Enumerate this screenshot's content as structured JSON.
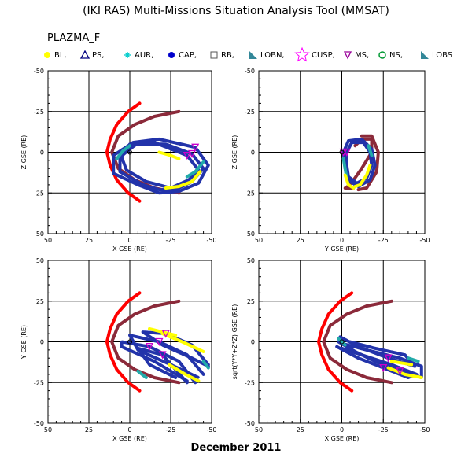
{
  "title": "(IKI RAS) Multi-Missions Situation Analysis Tool (MMSAT)",
  "dataset": "PLAZMA_F",
  "date": "December 2011",
  "legend": [
    {
      "label": "BL,",
      "symbol": "filled-circle",
      "color": "#ffff00"
    },
    {
      "label": "PS,",
      "symbol": "open-triangle",
      "color": "#000080"
    },
    {
      "label": "AUR,",
      "symbol": "asterisk",
      "color": "#00cccc"
    },
    {
      "label": "CAP,",
      "symbol": "filled-circle",
      "color": "#0000cc"
    },
    {
      "label": "RB,",
      "symbol": "open-square",
      "color": "#555555"
    },
    {
      "label": "LOBN,",
      "symbol": "filled-triangle",
      "color": "#338899"
    },
    {
      "label": "CUSP,",
      "symbol": "star",
      "color": "#ff00ff"
    },
    {
      "label": "MS,",
      "symbol": "down-triangle",
      "color": "#990099"
    },
    {
      "label": "NS,",
      "symbol": "open-circle",
      "color": "#009933"
    },
    {
      "label": "LOBS",
      "symbol": "filled-triangle",
      "color": "#338899"
    }
  ],
  "colors": {
    "magnetopause": "#8b2a3a",
    "bow_shock": "#ff0000",
    "orbit": "#2233aa",
    "yellow_segment": "#ffff00",
    "cyan_segment": "#22aaaa"
  },
  "chart_data": [
    {
      "type": "scatter",
      "id": "xz",
      "xlabel": "X GSE (RE)",
      "ylabel": "Z GSE (RE)",
      "xlim": [
        50,
        -50
      ],
      "ylim": [
        -50,
        50
      ],
      "xticks": [
        "50",
        "25",
        "0",
        "-25",
        "-50"
      ],
      "yticks": [
        "50",
        "25",
        "0",
        "-25",
        "-50"
      ],
      "grid": true,
      "bow_shock": [
        [
          -6,
          30
        ],
        [
          1,
          25
        ],
        [
          8,
          17
        ],
        [
          12,
          8
        ],
        [
          14,
          0
        ],
        [
          12,
          -8
        ],
        [
          8,
          -17
        ],
        [
          1,
          -25
        ],
        [
          -6,
          -30
        ]
      ],
      "magnetopause": [
        [
          -30,
          25
        ],
        [
          -15,
          22
        ],
        [
          -3,
          17
        ],
        [
          7,
          10
        ],
        [
          11,
          0
        ],
        [
          7,
          -10
        ],
        [
          -3,
          -17
        ],
        [
          -15,
          -22
        ],
        [
          -30,
          -25
        ]
      ],
      "orbits": [
        [
          [
            -30,
            24
          ],
          [
            -42,
            19
          ],
          [
            -48,
            8
          ],
          [
            -40,
            -3
          ],
          [
            -18,
            -8
          ],
          [
            -2,
            -6
          ],
          [
            10,
            2
          ],
          [
            10,
            13
          ],
          [
            -5,
            20
          ],
          [
            -18,
            25
          ],
          [
            -30,
            24
          ]
        ],
        [
          [
            -28,
            23
          ],
          [
            -38,
            18
          ],
          [
            -45,
            10
          ],
          [
            -38,
            1
          ],
          [
            -22,
            -5
          ],
          [
            -4,
            -5
          ],
          [
            6,
            3
          ],
          [
            6,
            12
          ],
          [
            -8,
            20
          ],
          [
            -18,
            23
          ],
          [
            -28,
            23
          ]
        ],
        [
          [
            -25,
            22
          ],
          [
            -36,
            17
          ],
          [
            -42,
            11
          ],
          [
            -35,
            2
          ],
          [
            -15,
            -6
          ],
          [
            0,
            -5
          ],
          [
            5,
            3
          ],
          [
            2,
            11
          ],
          [
            -10,
            18
          ],
          [
            -25,
            22
          ]
        ]
      ],
      "yellow_segments": [
        [
          [
            -22,
            22
          ],
          [
            -30,
            21
          ],
          [
            -38,
            18
          ],
          [
            -43,
            12
          ]
        ],
        [
          [
            -18,
            0
          ],
          [
            -25,
            2
          ],
          [
            -30,
            4
          ]
        ]
      ],
      "cyan_segments": [
        [
          [
            -35,
            15
          ],
          [
            -40,
            12
          ],
          [
            -45,
            6
          ]
        ],
        [
          [
            0,
            -4
          ],
          [
            4,
            -1
          ],
          [
            8,
            4
          ]
        ]
      ]
    },
    {
      "type": "scatter",
      "id": "yz",
      "xlabel": "Y GSE (RE)",
      "ylabel": "Z GSE (RE)",
      "xlim": [
        50,
        -50
      ],
      "ylim": [
        -50,
        50
      ],
      "xticks": [
        "50",
        "25",
        "0",
        "-25",
        "-50"
      ],
      "yticks": [
        "50",
        "25",
        "0",
        "-25",
        "-50"
      ],
      "grid": true,
      "magnetopause": [
        [
          -7,
          22
        ],
        [
          -2,
          22
        ],
        [
          -5,
          20
        ],
        [
          -12,
          10
        ],
        [
          -18,
          0
        ],
        [
          -18,
          -8
        ],
        [
          -12,
          -8
        ],
        [
          -8,
          -4
        ]
      ],
      "magnetopause2": [
        [
          -10,
          23
        ],
        [
          -15,
          22
        ],
        [
          -21,
          12
        ],
        [
          -22,
          0
        ],
        [
          -18,
          -10
        ],
        [
          -12,
          -10
        ]
      ],
      "orbits": [
        [
          [
            -10,
            21
          ],
          [
            -5,
            18
          ],
          [
            -2,
            10
          ],
          [
            -1,
            0
          ],
          [
            -4,
            -7
          ],
          [
            -12,
            -8
          ],
          [
            -18,
            -2
          ],
          [
            -20,
            8
          ],
          [
            -17,
            17
          ],
          [
            -10,
            21
          ]
        ],
        [
          [
            -9,
            19
          ],
          [
            -4,
            15
          ],
          [
            -3,
            8
          ],
          [
            -3,
            0
          ],
          [
            -6,
            -6
          ],
          [
            -13,
            -6
          ],
          [
            -17,
            0
          ],
          [
            -18,
            8
          ],
          [
            -15,
            16
          ],
          [
            -9,
            19
          ]
        ]
      ],
      "yellow_segments": [
        [
          [
            -8,
            21
          ],
          [
            -11,
            20
          ],
          [
            -15,
            14
          ],
          [
            -17,
            8
          ]
        ],
        [
          [
            -2,
            14
          ],
          [
            -4,
            20
          ],
          [
            -7,
            22
          ]
        ]
      ],
      "cyan_segments": [
        [
          [
            -1,
            4
          ],
          [
            -2,
            10
          ],
          [
            -3,
            16
          ]
        ],
        [
          [
            -16,
            -4
          ],
          [
            -18,
            2
          ]
        ]
      ]
    },
    {
      "type": "scatter",
      "id": "xy",
      "xlabel": "X GSE (RE)",
      "ylabel": "Y GSE (RE)",
      "xlim": [
        50,
        -50
      ],
      "ylim": [
        50,
        -50
      ],
      "xticks": [
        "50",
        "25",
        "0",
        "-25",
        "-50"
      ],
      "yticks": [
        "-50",
        "-25",
        "0",
        "25",
        "50"
      ],
      "grid": true,
      "bow_shock": [
        [
          -6,
          -30
        ],
        [
          1,
          -25
        ],
        [
          8,
          -17
        ],
        [
          12,
          -8
        ],
        [
          14,
          0
        ],
        [
          12,
          8
        ],
        [
          8,
          17
        ],
        [
          1,
          25
        ],
        [
          -6,
          30
        ]
      ],
      "magnetopause": [
        [
          -30,
          -25
        ],
        [
          -15,
          -22
        ],
        [
          -3,
          -17
        ],
        [
          7,
          -10
        ],
        [
          11,
          0
        ],
        [
          7,
          10
        ],
        [
          -3,
          17
        ],
        [
          -15,
          22
        ],
        [
          -30,
          25
        ]
      ],
      "orbits": [
        [
          [
            -40,
            -25
          ],
          [
            -30,
            -12
          ],
          [
            -12,
            -3
          ],
          [
            5,
            0
          ],
          [
            5,
            -3
          ],
          [
            -15,
            -12
          ],
          [
            -35,
            -24
          ]
        ],
        [
          [
            -45,
            -20
          ],
          [
            -35,
            -8
          ],
          [
            -18,
            0
          ],
          [
            0,
            4
          ],
          [
            -5,
            -5
          ],
          [
            -25,
            -14
          ],
          [
            -42,
            -22
          ]
        ],
        [
          [
            -48,
            -14
          ],
          [
            -38,
            -2
          ],
          [
            -22,
            5
          ],
          [
            -8,
            6
          ],
          [
            -20,
            -2
          ],
          [
            -38,
            -10
          ],
          [
            -48,
            -15
          ]
        ],
        [
          [
            -35,
            -25
          ],
          [
            -20,
            -8
          ],
          [
            -5,
            -4
          ],
          [
            -12,
            -14
          ],
          [
            -28,
            -22
          ]
        ]
      ],
      "yellow_segments": [
        [
          [
            -20,
            5
          ],
          [
            -32,
            0
          ],
          [
            -45,
            -6
          ]
        ],
        [
          [
            -24,
            -14
          ],
          [
            -34,
            -20
          ],
          [
            -42,
            -24
          ]
        ],
        [
          [
            -12,
            8
          ],
          [
            -28,
            4
          ]
        ]
      ],
      "cyan_segments": [
        [
          [
            -45,
            -12
          ],
          [
            -48,
            -16
          ]
        ],
        [
          [
            -5,
            -18
          ],
          [
            -10,
            -22
          ]
        ]
      ]
    },
    {
      "type": "scatter",
      "id": "xyz",
      "xlabel": "X GSE (RE)",
      "ylabel": "sqrt(Y*Y+Z*Z) GSE (RE)",
      "xlim": [
        50,
        -50
      ],
      "ylim": [
        50,
        -50
      ],
      "xticks": [
        "50",
        "25",
        "0",
        "-25",
        "-50"
      ],
      "yticks": [
        "-50",
        "-25",
        "0",
        "25",
        "50"
      ],
      "grid": true,
      "bow_shock": [
        [
          -6,
          -30
        ],
        [
          1,
          -25
        ],
        [
          8,
          -17
        ],
        [
          12,
          -8
        ],
        [
          14,
          0
        ],
        [
          12,
          8
        ],
        [
          8,
          17
        ],
        [
          1,
          25
        ],
        [
          -6,
          30
        ]
      ],
      "magnetopause": [
        [
          -30,
          -25
        ],
        [
          -15,
          -22
        ],
        [
          -3,
          -17
        ],
        [
          7,
          -10
        ],
        [
          11,
          0
        ],
        [
          7,
          10
        ],
        [
          -3,
          17
        ],
        [
          -15,
          22
        ],
        [
          -30,
          25
        ]
      ],
      "orbits": [
        [
          [
            3,
            -3
          ],
          [
            -10,
            -10
          ],
          [
            -25,
            -16
          ],
          [
            -40,
            -22
          ],
          [
            -45,
            -20
          ],
          [
            -30,
            -14
          ],
          [
            -12,
            -8
          ],
          [
            0,
            -4
          ]
        ],
        [
          [
            2,
            0
          ],
          [
            -8,
            -6
          ],
          [
            -20,
            -12
          ],
          [
            -35,
            -18
          ],
          [
            -48,
            -22
          ],
          [
            -48,
            -15
          ],
          [
            -35,
            -10
          ],
          [
            -15,
            -5
          ],
          [
            0,
            -1
          ]
        ],
        [
          [
            1,
            3
          ],
          [
            -10,
            -3
          ],
          [
            -28,
            -10
          ],
          [
            -44,
            -15
          ],
          [
            -38,
            -8
          ],
          [
            -20,
            -4
          ],
          [
            -5,
            0
          ]
        ]
      ],
      "yellow_segments": [
        [
          [
            -28,
            -16
          ],
          [
            -38,
            -20
          ],
          [
            -48,
            -22
          ]
        ],
        [
          [
            -30,
            -12
          ],
          [
            -42,
            -14
          ]
        ]
      ],
      "cyan_segments": [
        [
          [
            -40,
            -10
          ],
          [
            -46,
            -12
          ]
        ],
        [
          [
            2,
            2
          ],
          [
            -2,
            -2
          ]
        ]
      ]
    }
  ]
}
